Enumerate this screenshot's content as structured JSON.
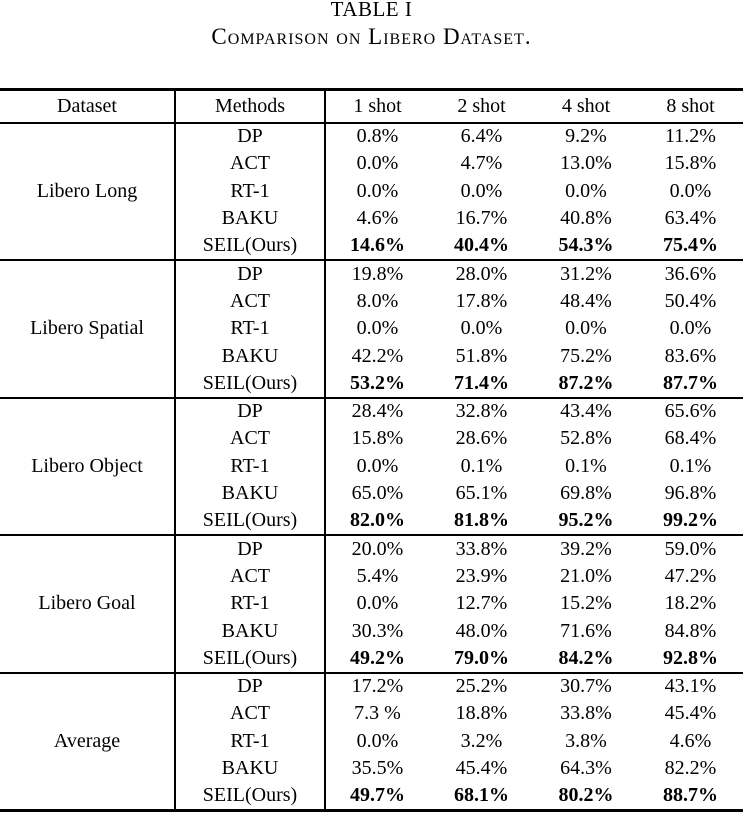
{
  "caption": {
    "title": "TABLE I",
    "subtitle": "Comparison on Libero Dataset."
  },
  "table": {
    "columns": [
      "Dataset",
      "Methods",
      "1 shot",
      "2 shot",
      "4 shot",
      "8 shot"
    ],
    "groups": [
      {
        "dataset": "Libero Long",
        "rows": [
          {
            "method": "DP",
            "values": [
              "0.8%",
              "6.4%",
              "9.2%",
              "11.2%"
            ],
            "bold": false
          },
          {
            "method": "ACT",
            "values": [
              "0.0%",
              "4.7%",
              "13.0%",
              "15.8%"
            ],
            "bold": false
          },
          {
            "method": "RT-1",
            "values": [
              "0.0%",
              "0.0%",
              "0.0%",
              "0.0%"
            ],
            "bold": false
          },
          {
            "method": "BAKU",
            "values": [
              "4.6%",
              "16.7%",
              "40.8%",
              "63.4%"
            ],
            "bold": false
          },
          {
            "method": "SEIL(Ours)",
            "values": [
              "14.6%",
              "40.4%",
              "54.3%",
              "75.4%"
            ],
            "bold": true
          }
        ]
      },
      {
        "dataset": "Libero Spatial",
        "rows": [
          {
            "method": "DP",
            "values": [
              "19.8%",
              "28.0%",
              "31.2%",
              "36.6%"
            ],
            "bold": false
          },
          {
            "method": "ACT",
            "values": [
              "8.0%",
              "17.8%",
              "48.4%",
              "50.4%"
            ],
            "bold": false
          },
          {
            "method": "RT-1",
            "values": [
              "0.0%",
              "0.0%",
              "0.0%",
              "0.0%"
            ],
            "bold": false
          },
          {
            "method": "BAKU",
            "values": [
              "42.2%",
              "51.8%",
              "75.2%",
              "83.6%"
            ],
            "bold": false
          },
          {
            "method": "SEIL(Ours)",
            "values": [
              "53.2%",
              "71.4%",
              "87.2%",
              "87.7%"
            ],
            "bold": true
          }
        ]
      },
      {
        "dataset": "Libero Object",
        "rows": [
          {
            "method": "DP",
            "values": [
              "28.4%",
              "32.8%",
              "43.4%",
              "65.6%"
            ],
            "bold": false
          },
          {
            "method": "ACT",
            "values": [
              "15.8%",
              "28.6%",
              "52.8%",
              "68.4%"
            ],
            "bold": false
          },
          {
            "method": "RT-1",
            "values": [
              "0.0%",
              "0.1%",
              "0.1%",
              "0.1%"
            ],
            "bold": false
          },
          {
            "method": "BAKU",
            "values": [
              "65.0%",
              "65.1%",
              "69.8%",
              "96.8%"
            ],
            "bold": false
          },
          {
            "method": "SEIL(Ours)",
            "values": [
              "82.0%",
              "81.8%",
              "95.2%",
              "99.2%"
            ],
            "bold": true
          }
        ]
      },
      {
        "dataset": "Libero Goal",
        "rows": [
          {
            "method": "DP",
            "values": [
              "20.0%",
              "33.8%",
              "39.2%",
              "59.0%"
            ],
            "bold": false
          },
          {
            "method": "ACT",
            "values": [
              "5.4%",
              "23.9%",
              "21.0%",
              "47.2%"
            ],
            "bold": false
          },
          {
            "method": "RT-1",
            "values": [
              "0.0%",
              "12.7%",
              "15.2%",
              "18.2%"
            ],
            "bold": false
          },
          {
            "method": "BAKU",
            "values": [
              "30.3%",
              "48.0%",
              "71.6%",
              "84.8%"
            ],
            "bold": false
          },
          {
            "method": "SEIL(Ours)",
            "values": [
              "49.2%",
              "79.0%",
              "84.2%",
              "92.8%"
            ],
            "bold": true
          }
        ]
      },
      {
        "dataset": "Average",
        "rows": [
          {
            "method": "DP",
            "values": [
              "17.2%",
              "25.2%",
              "30.7%",
              "43.1%"
            ],
            "bold": false
          },
          {
            "method": "ACT",
            "values": [
              "7.3 %",
              "18.8%",
              "33.8%",
              "45.4%"
            ],
            "bold": false
          },
          {
            "method": "RT-1",
            "values": [
              "0.0%",
              "3.2%",
              "3.8%",
              "4.6%"
            ],
            "bold": false
          },
          {
            "method": "BAKU",
            "values": [
              "35.5%",
              "45.4%",
              "64.3%",
              "82.2%"
            ],
            "bold": false
          },
          {
            "method": "SEIL(Ours)",
            "values": [
              "49.7%",
              "68.1%",
              "80.2%",
              "88.7%"
            ],
            "bold": true
          }
        ]
      }
    ]
  }
}
